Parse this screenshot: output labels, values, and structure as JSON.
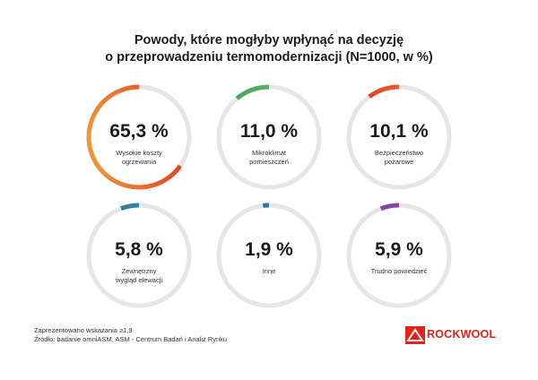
{
  "title_line1": "Powody, które mogłyby wpłynąć na decyzję",
  "title_line2": "o przeprowadzeniu termomodernizacji (N=1000, w %)",
  "chart_data": {
    "type": "donut",
    "items": [
      {
        "value": 65.3,
        "value_label": "65,3 %",
        "label_lines": [
          "Wysokie koszty",
          "ogrzewania"
        ],
        "color_start": "#f2a93b",
        "color_end": "#e2231a"
      },
      {
        "value": 11.0,
        "value_label": "11,0 %",
        "label_lines": [
          "Mikroklimat",
          "pomieszczeń"
        ],
        "color_start": "#7cc576",
        "color_end": "#3a9a5b"
      },
      {
        "value": 10.1,
        "value_label": "10,1 %",
        "label_lines": [
          "Bezpieczeństwo",
          "pożarowe"
        ],
        "color_start": "#f2a93b",
        "color_end": "#e2231a"
      },
      {
        "value": 5.8,
        "value_label": "5,8 %",
        "label_lines": [
          "Zewnętrzny",
          "wygląd elewacji"
        ],
        "color_start": "#3aa26b",
        "color_end": "#2f6fb5"
      },
      {
        "value": 1.9,
        "value_label": "1,9 %",
        "label_lines": [
          "Inne"
        ],
        "color_start": "#2f6fb5",
        "color_end": "#2f6fb5"
      },
      {
        "value": 5.9,
        "value_label": "5,9 %",
        "label_lines": [
          "Trudno powiedzieć"
        ],
        "color_start": "#9b59b6",
        "color_end": "#7b3fa0"
      }
    ]
  },
  "footnote_line1": "Zaprezentowano wskazania ≥1,9",
  "footnote_line2": "Źródło: badanie omniASM, ASM - Centrum Badań i Analiz Rynku",
  "logo_text": "ROCKWOOL",
  "colors": {
    "track": "#e6e6e6",
    "brand": "#e2231a"
  }
}
